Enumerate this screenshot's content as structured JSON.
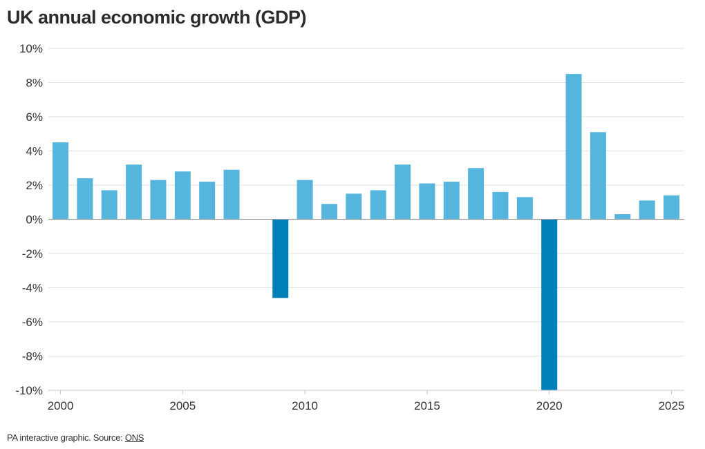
{
  "chart_data": {
    "type": "bar",
    "title": "UK annual economic growth (GDP)",
    "xlabel": "",
    "ylabel": "",
    "ylim": [
      -10,
      10
    ],
    "yticks": [
      "10%",
      "8%",
      "6%",
      "4%",
      "2%",
      "0%",
      "-2%",
      "-4%",
      "-6%",
      "-8%",
      "-10%"
    ],
    "ytick_values": [
      10,
      8,
      6,
      4,
      2,
      0,
      -2,
      -4,
      -6,
      -8,
      -10
    ],
    "xticks": [
      "2000",
      "2005",
      "2010",
      "2015",
      "2020",
      "2025"
    ],
    "xtick_values": [
      2000,
      2005,
      2010,
      2015,
      2020,
      2025
    ],
    "grid": true,
    "legend": "none",
    "colors": {
      "positive": "#56b5dd",
      "negative": "#0080b8",
      "grid": "#e2e2e2",
      "axis": "#9a9a9a"
    },
    "categories": [
      "2000",
      "2001",
      "2002",
      "2003",
      "2004",
      "2005",
      "2006",
      "2007",
      "2008",
      "2009",
      "2010",
      "2011",
      "2012",
      "2013",
      "2014",
      "2015",
      "2016",
      "2017",
      "2018",
      "2019",
      "2020",
      "2021",
      "2022",
      "2023",
      "2024",
      "2025"
    ],
    "values": [
      4.5,
      2.4,
      1.7,
      3.2,
      2.3,
      2.8,
      2.2,
      2.9,
      0.0,
      -4.6,
      2.3,
      0.9,
      1.5,
      1.7,
      3.2,
      2.1,
      2.2,
      3.0,
      1.6,
      1.3,
      -10.0,
      8.5,
      5.1,
      0.3,
      1.1,
      1.4
    ]
  },
  "footer": {
    "text": "PA interactive graphic. Source: ",
    "source_link": "ONS"
  }
}
